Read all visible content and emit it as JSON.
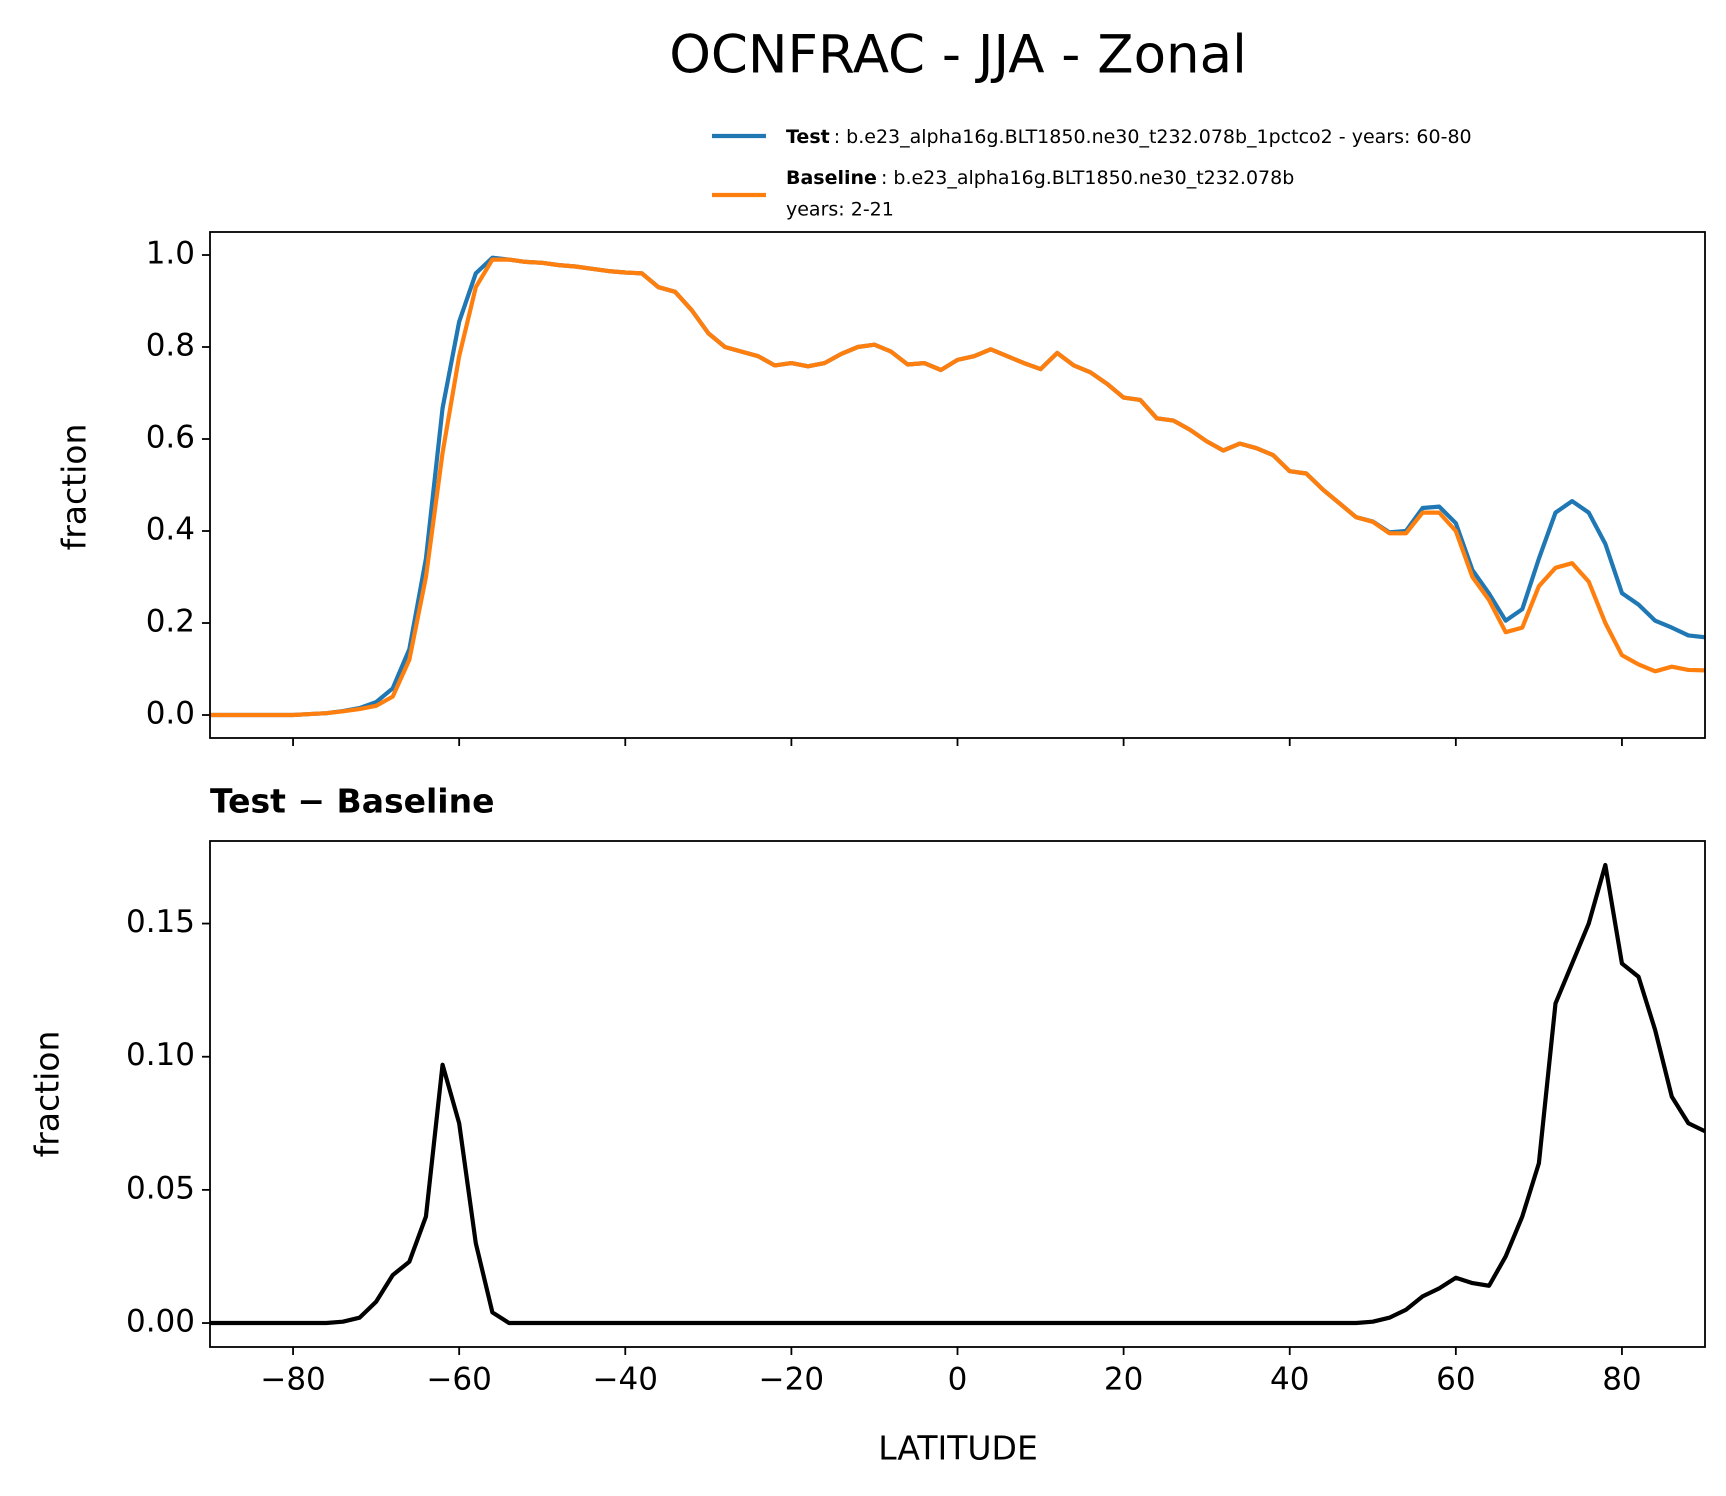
{
  "chart_data": [
    {
      "type": "line",
      "title": "OCNFRAC - JJA - Zonal",
      "y_label": "fraction",
      "x": [
        -90,
        -88,
        -86,
        -84,
        -82,
        -80,
        -78,
        -76,
        -74,
        -72,
        -70,
        -68,
        -66,
        -64,
        -62,
        -60,
        -58,
        -56,
        -54,
        -52,
        -50,
        -48,
        -46,
        -44,
        -42,
        -40,
        -38,
        -36,
        -34,
        -32,
        -30,
        -28,
        -26,
        -24,
        -22,
        -20,
        -18,
        -16,
        -14,
        -12,
        -10,
        -8,
        -6,
        -4,
        -2,
        0,
        2,
        4,
        6,
        8,
        10,
        12,
        14,
        16,
        18,
        20,
        22,
        24,
        26,
        28,
        30,
        32,
        34,
        36,
        38,
        40,
        42,
        44,
        46,
        48,
        50,
        52,
        54,
        56,
        58,
        60,
        62,
        64,
        66,
        68,
        70,
        72,
        74,
        76,
        78,
        80,
        82,
        84,
        86,
        88,
        90
      ],
      "series": [
        {
          "name": "Test",
          "description": [
            ": b.e23_alpha16g.BLT1850.ne30_t232.078b_1pctco2 - years: 60-80"
          ],
          "color": "#1f77b4",
          "values": [
            0,
            0,
            0,
            0,
            0,
            0,
            0.002,
            0.004,
            0.0085,
            0.015,
            0.028,
            0.058,
            0.143,
            0.34,
            0.667,
            0.855,
            0.96,
            0.994,
            0.99,
            0.985,
            0.983,
            0.978,
            0.975,
            0.97,
            0.965,
            0.962,
            0.96,
            0.93,
            0.92,
            0.88,
            0.83,
            0.8,
            0.79,
            0.78,
            0.76,
            0.765,
            0.758,
            0.765,
            0.785,
            0.8,
            0.805,
            0.79,
            0.762,
            0.765,
            0.75,
            0.772,
            0.78,
            0.795,
            0.78,
            0.765,
            0.752,
            0.787,
            0.76,
            0.745,
            0.72,
            0.69,
            0.685,
            0.645,
            0.64,
            0.62,
            0.595,
            0.575,
            0.59,
            0.58,
            0.565,
            0.53,
            0.525,
            0.49,
            0.46,
            0.43,
            0.4205,
            0.397,
            0.4,
            0.45,
            0.453,
            0.417,
            0.315,
            0.264,
            0.205,
            0.23,
            0.34,
            0.44,
            0.465,
            0.44,
            0.372,
            0.265,
            0.24,
            0.205,
            0.19,
            0.173,
            0.169
          ]
        },
        {
          "name": "Baseline",
          "description": [
            ": b.e23_alpha16g.BLT1850.ne30_t232.078b",
            "years: 2-21"
          ],
          "color": "#ff7f0e",
          "values": [
            0,
            0,
            0,
            0,
            0,
            0,
            0.002,
            0.004,
            0.008,
            0.013,
            0.02,
            0.04,
            0.12,
            0.3,
            0.57,
            0.78,
            0.93,
            0.99,
            0.99,
            0.985,
            0.983,
            0.978,
            0.975,
            0.97,
            0.965,
            0.962,
            0.96,
            0.93,
            0.92,
            0.88,
            0.83,
            0.8,
            0.79,
            0.78,
            0.76,
            0.765,
            0.758,
            0.765,
            0.785,
            0.8,
            0.805,
            0.79,
            0.762,
            0.765,
            0.75,
            0.772,
            0.78,
            0.795,
            0.78,
            0.765,
            0.752,
            0.787,
            0.76,
            0.745,
            0.72,
            0.69,
            0.685,
            0.645,
            0.64,
            0.62,
            0.595,
            0.575,
            0.59,
            0.58,
            0.565,
            0.53,
            0.525,
            0.49,
            0.46,
            0.43,
            0.42,
            0.395,
            0.395,
            0.44,
            0.44,
            0.4,
            0.3,
            0.25,
            0.18,
            0.19,
            0.28,
            0.32,
            0.33,
            0.29,
            0.2,
            0.13,
            0.11,
            0.095,
            0.105,
            0.098,
            0.097
          ]
        }
      ],
      "xlim": [
        -90,
        90
      ],
      "xticks": [
        -80,
        -60,
        -40,
        -20,
        0,
        20,
        40,
        60,
        80
      ],
      "ylim": [
        -0.05,
        1.05
      ],
      "yticks": [
        {
          "value": 0,
          "label": "0.0"
        },
        0.2,
        0.4,
        0.6,
        0.8,
        {
          "value": 1,
          "label": "1.0"
        }
      ]
    },
    {
      "type": "line",
      "title": "Test − Baseline",
      "y_label": "fraction",
      "x_label": "LATITUDE",
      "x": [
        -90,
        -88,
        -86,
        -84,
        -82,
        -80,
        -78,
        -76,
        -74,
        -72,
        -70,
        -68,
        -66,
        -64,
        -62,
        -60,
        -58,
        -56,
        -54,
        -52,
        -50,
        -48,
        -46,
        -44,
        -42,
        -40,
        -38,
        -36,
        -34,
        -32,
        -30,
        -28,
        -26,
        -24,
        -22,
        -20,
        -18,
        -16,
        -14,
        -12,
        -10,
        -8,
        -6,
        -4,
        -2,
        0,
        2,
        4,
        6,
        8,
        10,
        12,
        14,
        16,
        18,
        20,
        22,
        24,
        26,
        28,
        30,
        32,
        34,
        36,
        38,
        40,
        42,
        44,
        46,
        48,
        50,
        52,
        54,
        56,
        58,
        60,
        62,
        64,
        66,
        68,
        70,
        72,
        74,
        76,
        78,
        80,
        82,
        84,
        86,
        88,
        90
      ],
      "color": "#000000",
      "values": [
        0,
        0,
        0,
        0,
        0,
        0,
        0,
        0,
        0.0005,
        0.002,
        0.008,
        0.018,
        0.023,
        0.04,
        0.097,
        0.075,
        0.03,
        0.004,
        0,
        0,
        0,
        0,
        0,
        0,
        0,
        0,
        0,
        0,
        0,
        0,
        0,
        0,
        0,
        0,
        0,
        0,
        0,
        0,
        0,
        0,
        0,
        0,
        0,
        0,
        0,
        0,
        0,
        0,
        0,
        0,
        0,
        0,
        0,
        0,
        0,
        0,
        0,
        0,
        0,
        0,
        0,
        0,
        0,
        0,
        0,
        0,
        0,
        0,
        0,
        0,
        0.0005,
        0.002,
        0.005,
        0.01,
        0.013,
        0.017,
        0.015,
        0.014,
        0.025,
        0.04,
        0.06,
        0.12,
        0.135,
        0.15,
        0.172,
        0.135,
        0.13,
        0.11,
        0.085,
        0.075,
        0.072
      ],
      "xlim": [
        -90,
        90
      ],
      "xticks": [
        {
          "value": -80,
          "label": "−80"
        },
        {
          "value": -60,
          "label": "−60"
        },
        {
          "value": -40,
          "label": "−40"
        },
        {
          "value": -20,
          "label": "−20"
        },
        0,
        20,
        40,
        60,
        80
      ],
      "ylim": [
        -0.009,
        0.181
      ],
      "yticks": [
        {
          "value": 0,
          "label": "0.00"
        },
        {
          "value": 0.05,
          "label": "0.05"
        },
        {
          "value": 0.1,
          "label": "0.10"
        },
        0.15
      ]
    }
  ]
}
